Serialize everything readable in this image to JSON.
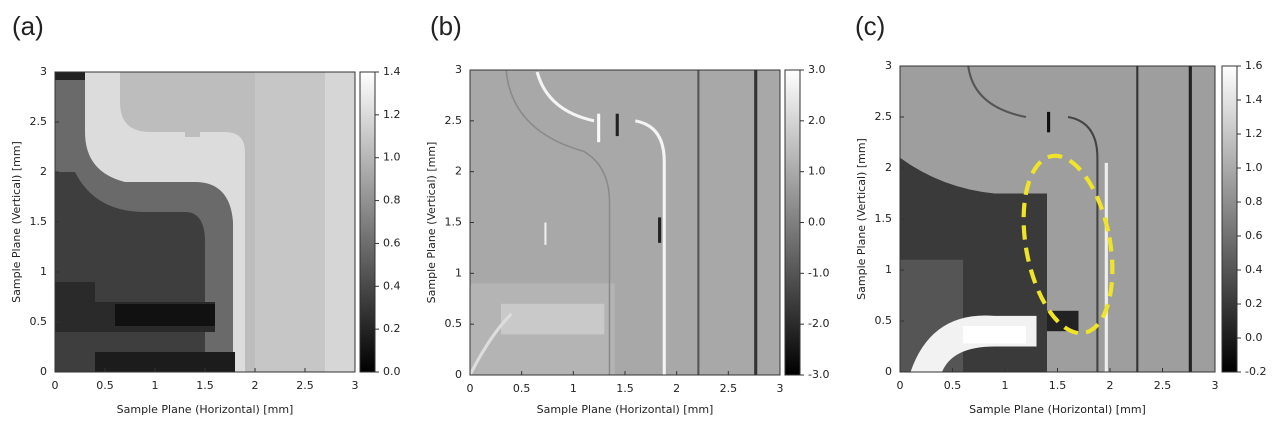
{
  "chart_data": [
    {
      "type": "heatmap",
      "label": "(a)",
      "x_label": "Sample Plane (Horizontal) [mm]",
      "y_label": "Sample Plane (Vertical) [mm]",
      "xlim": [
        0,
        3
      ],
      "ylim": [
        0,
        3
      ],
      "xticks": [
        0,
        0.5,
        1,
        1.5,
        2,
        2.5,
        3
      ],
      "yticks": [
        0,
        0.5,
        1,
        1.5,
        2,
        2.5,
        3
      ],
      "colormap": [
        "#000000",
        "#ffffff"
      ],
      "colorbar": {
        "lim": [
          0,
          1.4
        ],
        "ticks": [
          {
            "value": 0,
            "label": "0.0"
          },
          0.2,
          0.4,
          0.6,
          0.8,
          {
            "value": 1,
            "label": "1.0"
          },
          1.2,
          1.4
        ]
      }
    },
    {
      "type": "heatmap",
      "label": "(b)",
      "x_label": "Sample Plane (Horizontal) [mm]",
      "y_label": "Sample Plane (Vertical) [mm]",
      "xlim": [
        0,
        3
      ],
      "ylim": [
        0,
        3
      ],
      "xticks": [
        0,
        0.5,
        1,
        1.5,
        2,
        2.5,
        3
      ],
      "yticks": [
        0,
        0.5,
        1,
        1.5,
        2,
        2.5,
        3
      ],
      "colormap": [
        "#000000",
        "#ffffff"
      ],
      "colorbar": {
        "lim": [
          -3,
          3
        ],
        "ticks": [
          {
            "value": -3,
            "label": "-3.0"
          },
          {
            "value": -2,
            "label": "-2.0"
          },
          {
            "value": -1,
            "label": "-1.0"
          },
          {
            "value": 0,
            "label": "0.0"
          },
          {
            "value": 1,
            "label": "1.0"
          },
          {
            "value": 2,
            "label": "2.0"
          },
          {
            "value": 3,
            "label": "3.0"
          }
        ]
      }
    },
    {
      "type": "heatmap",
      "label": "(c)",
      "x_label": "Sample Plane (Horizontal) [mm]",
      "y_label": "Sample Plane (Vertical) [mm]",
      "xlim": [
        0,
        3
      ],
      "ylim": [
        0,
        3
      ],
      "xticks": [
        0,
        0.5,
        1,
        1.5,
        2,
        2.5,
        3
      ],
      "yticks": [
        0,
        0.5,
        1,
        1.5,
        2,
        2.5,
        3
      ],
      "colormap": [
        "#000000",
        "#ffffff"
      ],
      "colorbar": {
        "lim": [
          -0.2,
          1.6
        ],
        "ticks": [
          -0.2,
          {
            "value": 0,
            "label": "0.0"
          },
          0.2,
          0.4,
          0.6,
          0.8,
          {
            "value": 1,
            "label": "1.0"
          },
          1.2,
          1.4,
          1.6
        ]
      }
    }
  ]
}
